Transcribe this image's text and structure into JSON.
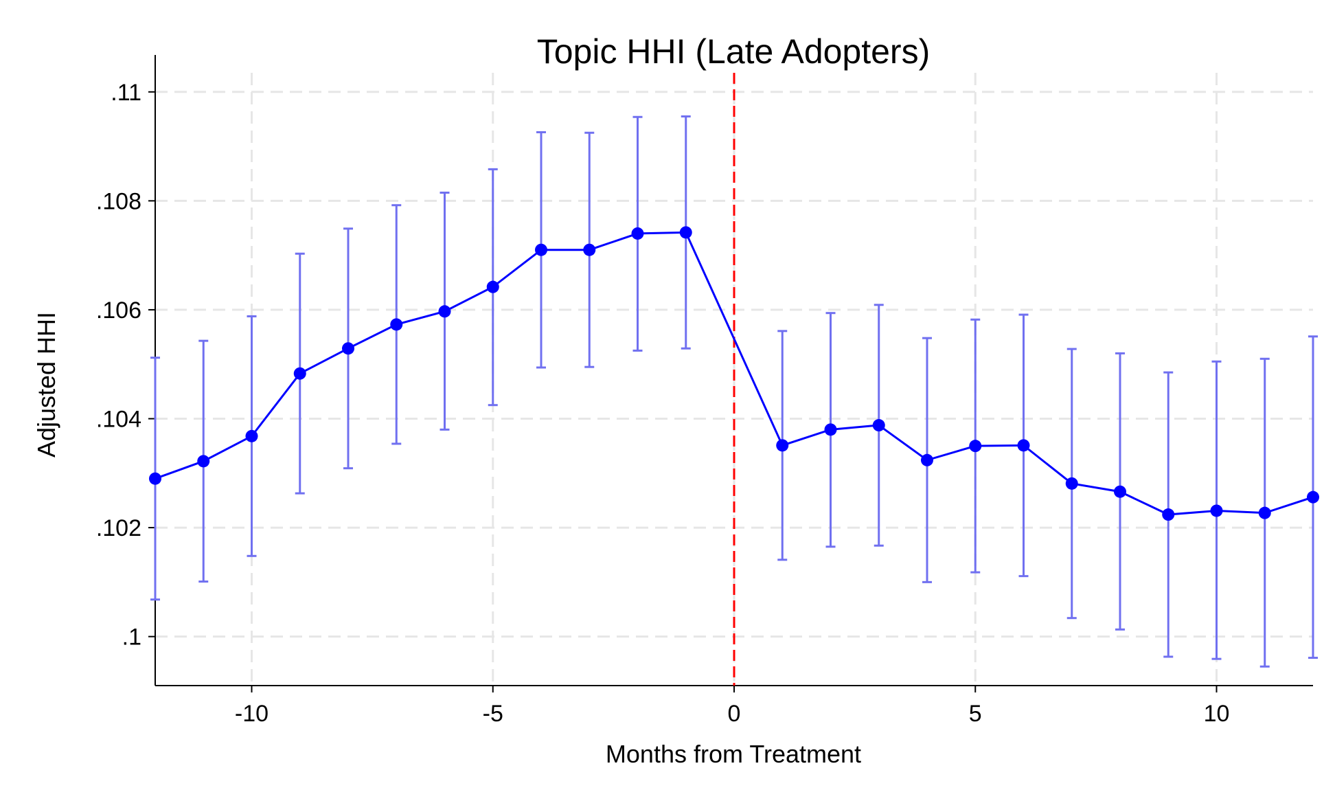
{
  "chart_data": {
    "type": "line",
    "title": "Topic HHI (Late Adopters)",
    "xlabel": "Months from Treatment",
    "ylabel": "Adjusted HHI",
    "xlim": [
      -12,
      12
    ],
    "ylim": [
      0.0991,
      0.1103
    ],
    "x_ticks": [
      -10,
      -5,
      0,
      5,
      10
    ],
    "x_tick_labels": [
      "-10",
      "-5",
      "0",
      "5",
      "10"
    ],
    "y_ticks": [
      0.1,
      0.102,
      0.104,
      0.106,
      0.108,
      0.11
    ],
    "y_tick_labels": [
      ".1",
      ".102",
      ".104",
      ".106",
      ".108",
      ".11"
    ],
    "grid": true,
    "legend": "none",
    "reference_line": {
      "x": 0,
      "color": "#ff0000",
      "style": "dashed"
    },
    "colors": {
      "series": "#0000ff",
      "error_bars": "#7070f0"
    },
    "series": [
      {
        "x": [
          -12,
          -11,
          -10,
          -9,
          -8,
          -7,
          -6,
          -5,
          -4,
          -3,
          -2,
          -1,
          1,
          2,
          3,
          4,
          5,
          6,
          7,
          8,
          9,
          10,
          11,
          12
        ],
        "values": [
          0.1029,
          0.10322,
          0.10368,
          0.10483,
          0.10529,
          0.10573,
          0.10597,
          0.10642,
          0.1071,
          0.1071,
          0.1074,
          0.10742,
          0.10351,
          0.1038,
          0.10388,
          0.10324,
          0.1035,
          0.10351,
          0.10281,
          0.10266,
          0.10224,
          0.10231,
          0.10227,
          0.10256
        ],
        "lower": [
          0.10068,
          0.10101,
          0.10148,
          0.10263,
          0.10309,
          0.10354,
          0.1038,
          0.10425,
          0.10494,
          0.10495,
          0.10525,
          0.10529,
          0.10141,
          0.10165,
          0.10167,
          0.101,
          0.10118,
          0.10111,
          0.10034,
          0.10013,
          0.09963,
          0.09959,
          0.09945,
          0.09961
        ],
        "upper": [
          0.10512,
          0.10543,
          0.10588,
          0.10703,
          0.10749,
          0.10792,
          0.10815,
          0.10858,
          0.10926,
          0.10925,
          0.10954,
          0.10955,
          0.10561,
          0.10594,
          0.10609,
          0.10548,
          0.10582,
          0.10591,
          0.10528,
          0.1052,
          0.10485,
          0.10505,
          0.1051,
          0.10551
        ]
      }
    ]
  }
}
